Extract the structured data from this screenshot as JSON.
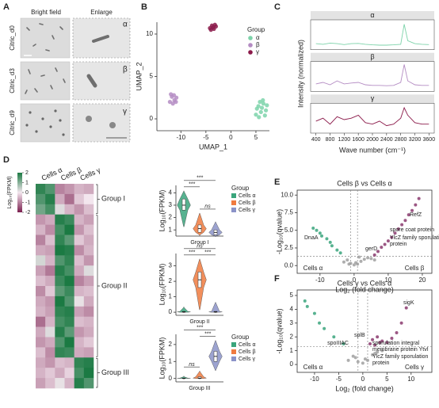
{
  "figure": {
    "panel_letters": [
      "A",
      "B",
      "C",
      "D",
      "E",
      "F"
    ]
  },
  "images": {
    "columns": [
      "Bright field",
      "Enlarge"
    ],
    "rows": [
      "Citric_d0",
      "Citric_d3",
      "Citric_d9"
    ],
    "labels": [
      "α",
      "β",
      "γ"
    ]
  },
  "chart_data": [
    {
      "type": "scatter",
      "xlabel": "UMAP_1",
      "ylabel": "UMAP_2",
      "xlim": [
        -14.8,
        7.7
      ],
      "ylim": [
        -1.4,
        11.4
      ],
      "xticks": [
        -10,
        -5,
        0,
        5
      ],
      "yticks": [
        0,
        5,
        10
      ],
      "box": false,
      "legend_title": "Group",
      "series": [
        {
          "name": "α",
          "color": "#7dd3aa",
          "x": [
            5,
            5.5,
            6,
            6.5,
            7,
            5.8,
            6.8,
            5.2,
            6.2,
            7.2,
            5.6,
            6.4
          ],
          "y": [
            0.5,
            1.5,
            0.8,
            1.8,
            1.0,
            2.0,
            0.4,
            1.2,
            1.3,
            1.6,
            0.2,
            2.2
          ]
        },
        {
          "name": "β",
          "color": "#b48cc3",
          "x": [
            -12.2,
            -11.8,
            -11.3,
            -10.9,
            -11.6,
            -12,
            -11,
            -11.4
          ],
          "y": [
            2.0,
            2.6,
            2.2,
            2.5,
            1.8,
            2.9,
            2.0,
            2.8
          ]
        },
        {
          "name": "γ",
          "color": "#8b1a4a",
          "x": [
            -4.2,
            -3.8,
            -3.4,
            -3.0,
            -3.6,
            -4,
            -3.2
          ],
          "y": [
            10.7,
            11.0,
            10.6,
            10.9,
            10.8,
            10.5,
            11.1
          ]
        }
      ]
    },
    {
      "type": "line",
      "xlabel": "Wave number (cm⁻¹)",
      "ylabel": "Intensity (normalized)",
      "xlim": [
        250,
        3750
      ],
      "ylim": [
        0,
        1
      ],
      "xticks": [
        400,
        800,
        1200,
        1600,
        2000,
        2400,
        2800,
        3200,
        3600
      ],
      "x": [
        400,
        600,
        800,
        1000,
        1200,
        1400,
        1600,
        1800,
        2000,
        2200,
        2400,
        2600,
        2800,
        2900,
        3000,
        3200,
        3400,
        3600
      ],
      "series": [
        {
          "name": "α",
          "color": "#7dd3aa",
          "values": [
            0.2,
            0.18,
            0.22,
            0.2,
            0.17,
            0.2,
            0.21,
            0.18,
            0.16,
            0.15,
            0.15,
            0.16,
            0.18,
            0.85,
            0.3,
            0.2,
            0.18,
            0.17
          ]
        },
        {
          "name": "β",
          "color": "#b48cc3",
          "values": [
            0.25,
            0.3,
            0.22,
            0.35,
            0.25,
            0.28,
            0.3,
            0.22,
            0.2,
            0.2,
            0.19,
            0.2,
            0.3,
            0.9,
            0.35,
            0.22,
            0.2,
            0.2
          ]
        },
        {
          "name": "γ",
          "color": "#8b1a4a",
          "values": [
            0.4,
            0.5,
            0.3,
            0.55,
            0.45,
            0.5,
            0.6,
            0.35,
            0.3,
            0.4,
            0.25,
            0.3,
            0.5,
            0.85,
            0.6,
            0.35,
            0.3,
            0.3
          ]
        }
      ]
    },
    {
      "type": "heatmap",
      "columns": [
        "Cells α",
        "Cells β",
        "Cells γ"
      ],
      "zlim": [
        -2,
        2
      ],
      "zticks": [
        2,
        1,
        0,
        -1,
        -2
      ],
      "zlabel": "Log₁₀(FPKM)",
      "colors": [
        "#7b1f4f",
        "#f3e6ee",
        "#1b7a43"
      ],
      "groups": [
        {
          "name": "Group I",
          "values": [
            [
              1.8,
              1.5,
              -1,
              -0.8,
              -0.5,
              -0.6
            ],
            [
              1.5,
              1.9,
              -0.6,
              -1.2,
              -0.3,
              0
            ],
            [
              1.2,
              1.6,
              0.2,
              -0.5,
              -0.8,
              -0.4
            ]
          ]
        },
        {
          "name": "Group II",
          "values": [
            [
              -0.8,
              -0.6,
              1.9,
              1.7,
              -0.5,
              -0.7
            ],
            [
              -0.5,
              -0.9,
              1.6,
              2.0,
              -0.8,
              -0.4
            ],
            [
              -1.0,
              -0.4,
              1.8,
              1.4,
              -0.3,
              -0.6
            ],
            [
              -0.6,
              -0.7,
              2.0,
              1.9,
              -0.9,
              -0.5
            ],
            [
              0.3,
              -0.5,
              1.5,
              1.8,
              -0.4,
              -0.8
            ],
            [
              -0.7,
              -1.1,
              1.9,
              1.6,
              -0.6,
              0.2
            ],
            [
              -0.4,
              -0.6,
              1.7,
              2.0,
              -1.0,
              -0.7
            ],
            [
              -0.9,
              -0.3,
              1.4,
              1.7,
              -0.5,
              -0.4
            ],
            [
              -0.6,
              -0.8,
              2.0,
              1.5,
              0.1,
              -0.6
            ],
            [
              -0.5,
              -0.7,
              1.8,
              1.9,
              -0.7,
              -0.9
            ],
            [
              -1.2,
              -0.5,
              1.6,
              1.8,
              -0.4,
              -0.5
            ],
            [
              -0.6,
              0.2,
              1.9,
              1.4,
              -0.8,
              -0.6
            ],
            [
              -0.8,
              -0.6,
              1.5,
              2.0,
              -0.5,
              -0.3
            ],
            [
              -0.4,
              -0.9,
              1.8,
              1.7,
              -0.6,
              -0.7
            ]
          ]
        },
        {
          "name": "Group III",
          "values": [
            [
              -0.6,
              -0.8,
              -0.4,
              -0.5,
              1.8,
              1.9
            ],
            [
              -0.5,
              -0.3,
              -0.6,
              -0.2,
              1.6,
              2
            ],
            [
              -0.7,
              -0.4,
              0.1,
              -0.5,
              1.9,
              1.5
            ]
          ]
        }
      ]
    },
    {
      "type": "violin",
      "xlabel": "Group I",
      "ylabel": "Log₁₀(FPKM)",
      "ylim": [
        0.5,
        4.6
      ],
      "yticks": [
        1,
        2,
        3,
        4
      ],
      "legend_title": "Group",
      "significance": [
        "***",
        "***",
        "ns"
      ],
      "series": [
        {
          "name": "Cells α",
          "color": "#3aa57c",
          "min": 1.3,
          "q1": 2.6,
          "median": 3.0,
          "q3": 3.5,
          "max": 4.1
        },
        {
          "name": "Cells β",
          "color": "#f07b3f",
          "min": 0.6,
          "q1": 0.8,
          "median": 1.1,
          "q3": 1.4,
          "max": 2.3
        },
        {
          "name": "Cells γ",
          "color": "#8b93c8",
          "min": 0.5,
          "q1": 0.6,
          "median": 0.8,
          "q3": 1.0,
          "max": 1.6
        }
      ]
    },
    {
      "type": "violin",
      "xlabel": "Group II",
      "ylabel": "Log₁₀(FPKM)",
      "ylim": [
        -0.2,
        3.8
      ],
      "yticks": [
        0,
        1,
        2,
        3
      ],
      "significance": [
        "***",
        "ns",
        "***"
      ],
      "series": [
        {
          "name": "Cells α",
          "color": "#3aa57c",
          "min": 0,
          "q1": 0,
          "median": 0.02,
          "q3": 0.05,
          "max": 0.3
        },
        {
          "name": "Cells β",
          "color": "#f07b3f",
          "min": 0.2,
          "q1": 1.6,
          "median": 2.1,
          "q3": 2.6,
          "max": 3.4
        },
        {
          "name": "Cells γ",
          "color": "#8b93c8",
          "min": 0,
          "q1": 0,
          "median": 0.02,
          "q3": 0.05,
          "max": 0.6
        }
      ]
    },
    {
      "type": "violin",
      "xlabel": "Group III",
      "ylabel": "Log₁₀(FPKM)",
      "ylim": [
        -0.2,
        2.6
      ],
      "yticks": [
        0,
        1,
        2
      ],
      "legend_title": "Group",
      "significance": [
        "ns",
        "***",
        "***"
      ],
      "series": [
        {
          "name": "Cells α",
          "color": "#3aa57c",
          "min": 0,
          "q1": 0,
          "median": 0,
          "q3": 0.02,
          "max": 0.1
        },
        {
          "name": "Cells β",
          "color": "#f07b3f",
          "min": 0,
          "q1": 0,
          "median": 0.02,
          "q3": 0.1,
          "max": 0.4
        },
        {
          "name": "Cells γ",
          "color": "#8b93c8",
          "min": 0.5,
          "q1": 1.0,
          "median": 1.3,
          "q3": 1.6,
          "max": 2.2
        }
      ]
    },
    {
      "type": "scatter",
      "title": "Cells β vs Cells α",
      "xlabel": "Log₂ (fold change)",
      "ylabel": "-Log₁₀(qvalue)",
      "xlim": [
        -16.7,
        22.8
      ],
      "ylim": [
        -1.1,
        10.7
      ],
      "xticks": [
        -10,
        0,
        10,
        20
      ],
      "yticks": [
        {
          "value": 0,
          "label": "0.0"
        },
        {
          "value": 2.5,
          "label": "2.5"
        },
        {
          "value": 5,
          "label": "5.0"
        },
        {
          "value": 7.5,
          "label": "7.5"
        },
        {
          "value": 10,
          "label": "10.0"
        }
      ],
      "box": true,
      "thresholds": {
        "x": [
          -1,
          1
        ],
        "y": 1.3
      },
      "annotations": [
        "DnaA",
        "RefZ",
        "spore coat protein",
        "gerD",
        "YlcZ family sporulation",
        "protein"
      ],
      "side_labels": [
        "Cells α",
        "Cells β"
      ],
      "series": [
        {
          "color": "#3aa57c",
          "x": [
            -12,
            -11,
            -10,
            -9.5,
            -8,
            -7,
            -6.5,
            -5,
            -4
          ],
          "y": [
            5.3,
            5,
            4.6,
            4.2,
            3.8,
            3.3,
            2.8,
            2.2,
            1.8
          ]
        },
        {
          "color": "#a0a0a0",
          "x": [
            -3,
            -2,
            -1,
            0,
            0.5,
            1,
            2,
            3,
            4,
            5,
            6,
            -1.5,
            1.5
          ],
          "y": [
            0.5,
            0.8,
            0.3,
            0.1,
            0.4,
            0.2,
            0.6,
            0.9,
            1.1,
            1.0,
            0.8,
            0.2,
            1.2
          ]
        },
        {
          "color": "#8b3a6e",
          "x": [
            6,
            7,
            8,
            9,
            10,
            11,
            12,
            13,
            14,
            15,
            16,
            17,
            18,
            19
          ],
          "y": [
            1.5,
            2,
            2.6,
            3,
            3.5,
            4,
            4.6,
            5.2,
            5.8,
            6.4,
            7.2,
            7.8,
            8.6,
            9.5
          ]
        }
      ]
    },
    {
      "type": "scatter",
      "title": "Cells γ vs Cells α",
      "xlabel": "Log₂ (fold change)",
      "ylabel": "-Log₁₀(qvalue)",
      "xlim": [
        -13.6,
        14.3
      ],
      "ylim": [
        -0.57,
        5.4
      ],
      "xticks": [
        -10,
        -5,
        0,
        5,
        10
      ],
      "yticks": [
        0,
        1,
        2,
        3,
        4,
        5
      ],
      "box": true,
      "thresholds": {
        "x": [
          -1,
          1
        ],
        "y": 1.3
      },
      "annotations": [
        "sigK",
        "splB",
        "spoIIIAC",
        "sporulation integral",
        "membrane protein YtvI",
        "YlcZ family sporulation",
        "protein"
      ],
      "side_labels": [
        "Cells α",
        "Cells γ"
      ],
      "series": [
        {
          "color": "#3aa57c",
          "x": [
            -12,
            -11.5,
            -10,
            -9,
            -8,
            -6,
            -4
          ],
          "y": [
            4.6,
            4.2,
            3.7,
            3.0,
            2.6,
            2.0,
            1.5
          ]
        },
        {
          "color": "#a0a0a0",
          "x": [
            -3,
            -2,
            -1,
            0,
            0.5,
            1,
            2,
            3,
            4,
            -1.5,
            2.5
          ],
          "y": [
            0.3,
            0.6,
            0.2,
            0.1,
            0.4,
            0.3,
            0.7,
            0.9,
            1.0,
            0.5,
            0.8
          ]
        },
        {
          "color": "#8b3a6e",
          "x": [
            1.5,
            2,
            3,
            4,
            5,
            6,
            7,
            8,
            9,
            2.5,
            3.5
          ],
          "y": [
            1.5,
            1.8,
            2.0,
            1.7,
            1.6,
            1.9,
            2.3,
            3.0,
            4.1,
            1.4,
            1.6
          ]
        }
      ]
    }
  ]
}
